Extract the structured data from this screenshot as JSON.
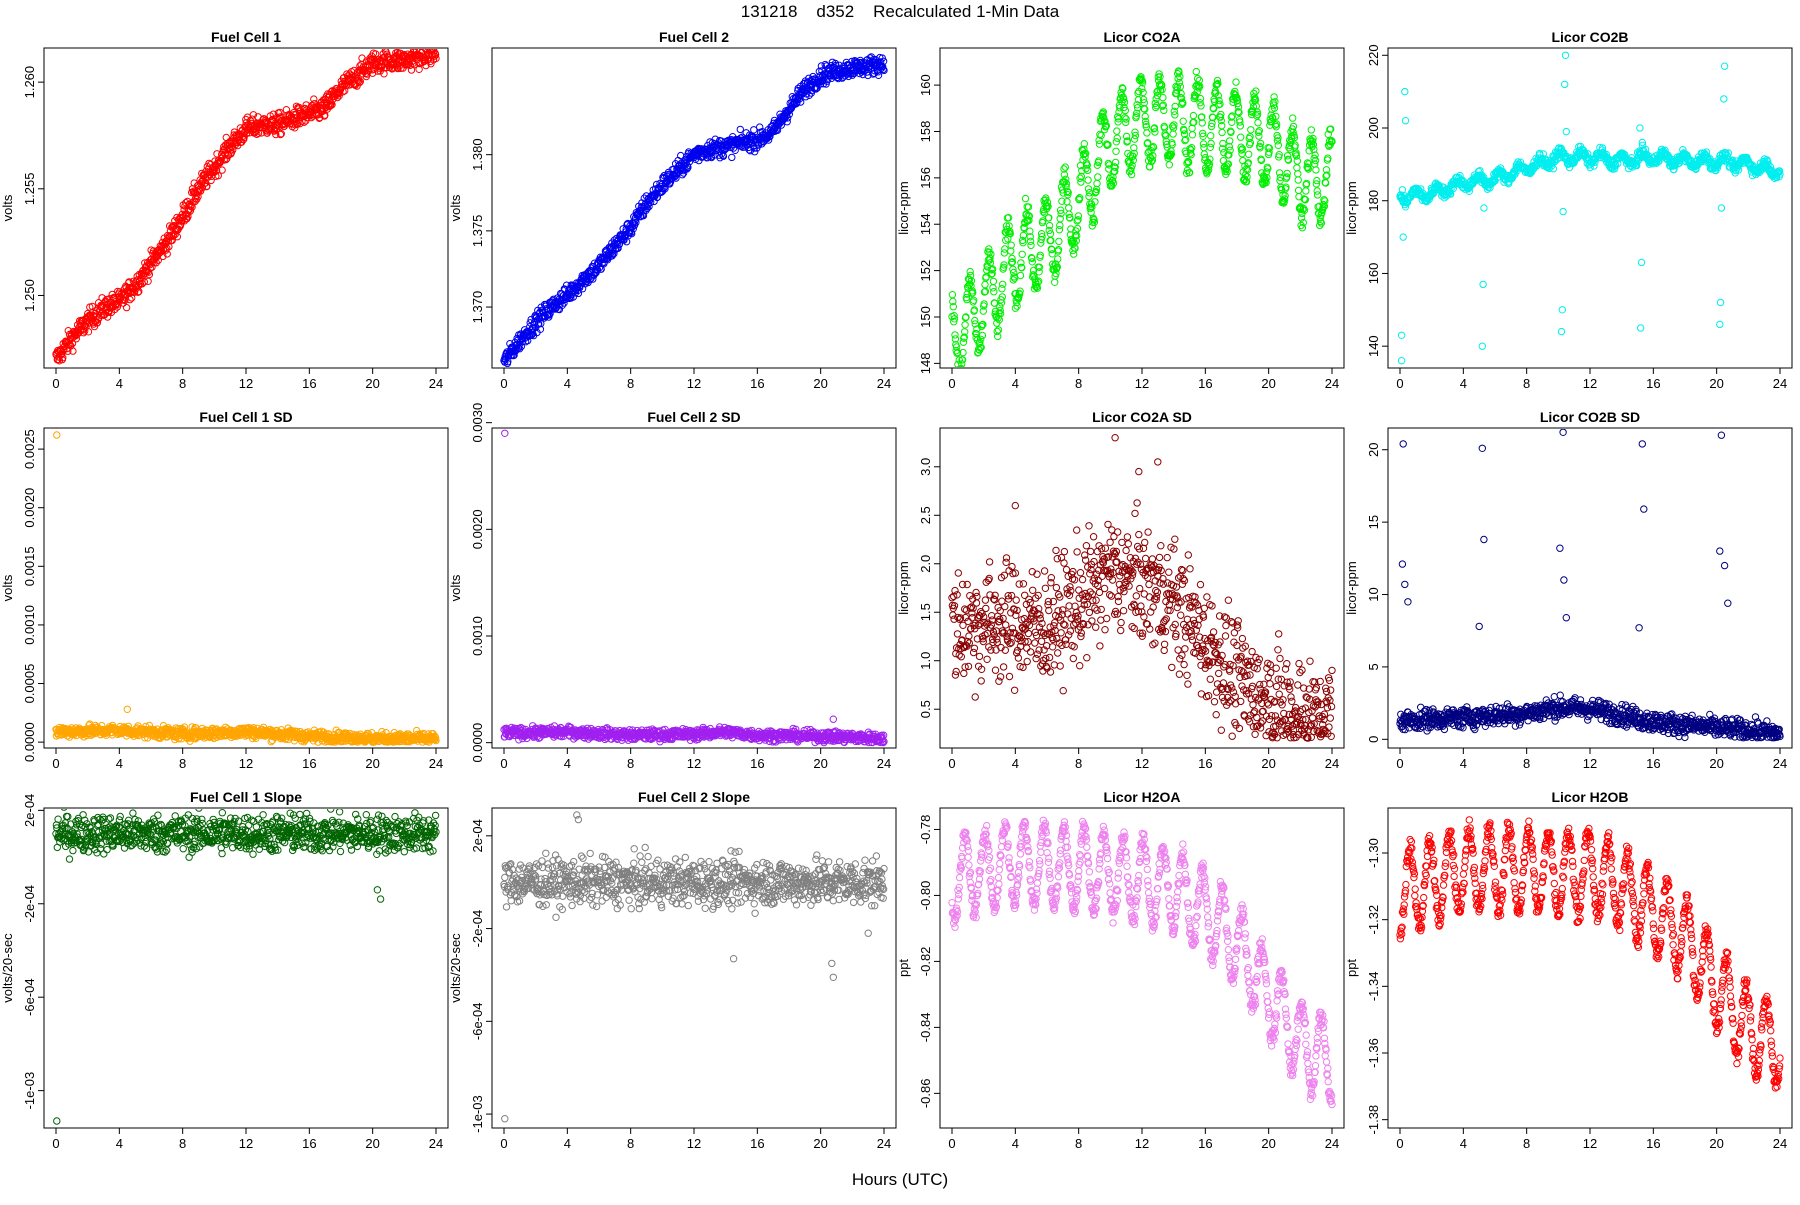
{
  "figure": {
    "title": "131218    d352    Recalculated 1-Min Data",
    "xlabel": "Hours (UTC)"
  },
  "chart_data": [
    {
      "type": "scatter",
      "title": "Fuel Cell 1",
      "ylabel": "volts",
      "color": "#ff0000",
      "xlim": [
        0,
        24
      ],
      "ylim": [
        1.2466,
        1.2616
      ],
      "xticks": [
        0,
        4,
        8,
        12,
        16,
        20,
        24
      ],
      "yticks": [
        1.25,
        1.255,
        1.26
      ],
      "ytick_labels": [
        "1.250",
        "1.255",
        "1.260"
      ],
      "trend": [
        [
          0,
          1.247
        ],
        [
          1,
          1.248
        ],
        [
          2,
          1.2488
        ],
        [
          3,
          1.2494
        ],
        [
          4,
          1.2497
        ],
        [
          5,
          1.2505
        ],
        [
          6,
          1.2515
        ],
        [
          7,
          1.2525
        ],
        [
          8,
          1.2537
        ],
        [
          9,
          1.255
        ],
        [
          10,
          1.256
        ],
        [
          11,
          1.257
        ],
        [
          12,
          1.2578
        ],
        [
          13,
          1.258
        ],
        [
          14,
          1.258
        ],
        [
          15,
          1.2583
        ],
        [
          16,
          1.2585
        ],
        [
          17,
          1.2588
        ],
        [
          18,
          1.2597
        ],
        [
          19,
          1.2603
        ],
        [
          20,
          1.2609
        ],
        [
          21,
          1.261
        ],
        [
          22,
          1.261
        ],
        [
          23,
          1.2612
        ],
        [
          24,
          1.2613
        ]
      ],
      "noise": 0.00025
    },
    {
      "type": "scatter",
      "title": "Fuel Cell 2",
      "ylabel": "volts",
      "color": "#0000ee",
      "xlim": [
        0,
        24
      ],
      "ylim": [
        1.366,
        1.387
      ],
      "xticks": [
        0,
        4,
        8,
        12,
        16,
        20,
        24
      ],
      "yticks": [
        1.37,
        1.375,
        1.38
      ],
      "ytick_labels": [
        "1.370",
        "1.375",
        "1.380"
      ],
      "trend": [
        [
          0,
          1.3664
        ],
        [
          1,
          1.3678
        ],
        [
          2,
          1.369
        ],
        [
          3,
          1.37
        ],
        [
          4,
          1.3708
        ],
        [
          5,
          1.3718
        ],
        [
          6,
          1.3727
        ],
        [
          7,
          1.374
        ],
        [
          8,
          1.3752
        ],
        [
          9,
          1.3768
        ],
        [
          10,
          1.378
        ],
        [
          11,
          1.379
        ],
        [
          12,
          1.38
        ],
        [
          13,
          1.3804
        ],
        [
          14,
          1.3805
        ],
        [
          15,
          1.3808
        ],
        [
          16,
          1.381
        ],
        [
          17,
          1.3815
        ],
        [
          18,
          1.383
        ],
        [
          19,
          1.3843
        ],
        [
          20,
          1.3852
        ],
        [
          21,
          1.3855
        ],
        [
          22,
          1.3857
        ],
        [
          23,
          1.3858
        ],
        [
          24,
          1.386
        ]
      ],
      "noise": 0.0003
    },
    {
      "type": "scatter",
      "title": "Licor CO2A",
      "ylabel": "licor-ppm",
      "color": "#00ee00",
      "xlim": [
        0,
        24
      ],
      "ylim": [
        147.8,
        161.6
      ],
      "xticks": [
        0,
        4,
        8,
        12,
        16,
        20,
        24
      ],
      "yticks": [
        148,
        150,
        152,
        154,
        156,
        158,
        160
      ],
      "ytick_labels": [
        "148",
        "150",
        "152",
        "154",
        "156",
        "158",
        "160"
      ],
      "trend": [
        [
          0,
          149.0
        ],
        [
          2,
          150.5
        ],
        [
          4,
          152.5
        ],
        [
          6,
          153.2
        ],
        [
          8,
          155.0
        ],
        [
          10,
          157.5
        ],
        [
          12,
          158.5
        ],
        [
          14,
          158.5
        ],
        [
          16,
          158.2
        ],
        [
          18,
          158.0
        ],
        [
          20,
          157.5
        ],
        [
          22,
          156.0
        ],
        [
          24,
          156.0
        ]
      ],
      "wave_amp": 1.8,
      "wave_period": 1.2,
      "noise": 0.25
    },
    {
      "type": "scatter",
      "title": "Licor CO2B",
      "ylabel": "licor-ppm",
      "color": "#00eeee",
      "xlim": [
        0,
        24
      ],
      "ylim": [
        134,
        222
      ],
      "xticks": [
        0,
        4,
        8,
        12,
        16,
        20,
        24
      ],
      "yticks": [
        140,
        160,
        180,
        200,
        220
      ],
      "ytick_labels": [
        "140",
        "160",
        "180",
        "200",
        "220"
      ],
      "trend": [
        [
          0,
          181
        ],
        [
          2,
          182
        ],
        [
          4,
          185
        ],
        [
          6,
          186
        ],
        [
          8,
          189
        ],
        [
          10,
          192
        ],
        [
          12,
          192
        ],
        [
          14,
          191
        ],
        [
          16,
          192
        ],
        [
          18,
          191
        ],
        [
          20,
          191
        ],
        [
          22,
          190
        ],
        [
          24,
          188
        ]
      ],
      "wave_amp": 1.5,
      "wave_period": 1.3,
      "noise": 0.7,
      "outliers": [
        [
          0.1,
          136
        ],
        [
          0.1,
          143
        ],
        [
          0.15,
          183
        ],
        [
          0.3,
          210
        ],
        [
          0.35,
          202
        ],
        [
          0.2,
          170
        ],
        [
          5.2,
          140
        ],
        [
          5.25,
          157
        ],
        [
          5.3,
          178
        ],
        [
          10.2,
          144
        ],
        [
          10.25,
          150
        ],
        [
          10.3,
          177
        ],
        [
          10.4,
          212
        ],
        [
          10.45,
          220
        ],
        [
          10.5,
          199
        ],
        [
          15.2,
          145
        ],
        [
          15.25,
          163
        ],
        [
          15.3,
          196
        ],
        [
          15.15,
          200
        ],
        [
          20.2,
          146
        ],
        [
          20.25,
          152
        ],
        [
          20.3,
          178
        ],
        [
          20.45,
          208
        ],
        [
          20.5,
          217
        ]
      ]
    },
    {
      "type": "scatter",
      "title": "Fuel Cell 1 SD",
      "ylabel": "volts",
      "color": "#ffa500",
      "xlim": [
        0,
        24
      ],
      "ylim": [
        -5e-05,
        0.00268
      ],
      "xticks": [
        0,
        4,
        8,
        12,
        16,
        20,
        24
      ],
      "yticks": [
        0.0,
        0.0005,
        0.001,
        0.0015,
        0.002,
        0.0025
      ],
      "ytick_labels": [
        "0.0000",
        "0.0005",
        "0.0010",
        "0.0015",
        "0.0020",
        "0.0025"
      ],
      "trend": [
        [
          0,
          9e-05
        ],
        [
          4,
          0.0001
        ],
        [
          8,
          7e-05
        ],
        [
          12,
          9e-05
        ],
        [
          16,
          5e-05
        ],
        [
          20,
          3e-05
        ],
        [
          24,
          3e-05
        ]
      ],
      "noise": 2.5e-05,
      "floor": 0.0,
      "outliers": [
        [
          0.05,
          0.00262
        ],
        [
          4.5,
          0.00028
        ]
      ]
    },
    {
      "type": "scatter",
      "title": "Fuel Cell 2 SD",
      "ylabel": "volts",
      "color": "#a020f0",
      "xlim": [
        0,
        24
      ],
      "ylim": [
        -5e-05,
        0.00295
      ],
      "xticks": [
        0,
        4,
        8,
        12,
        16,
        20,
        24
      ],
      "yticks": [
        0.0,
        0.001,
        0.002,
        0.003
      ],
      "ytick_labels": [
        "0.0000",
        "0.0010",
        "0.0020",
        "0.0030"
      ],
      "trend": [
        [
          0,
          9e-05
        ],
        [
          4,
          0.0001
        ],
        [
          8,
          7e-05
        ],
        [
          12,
          8e-05
        ],
        [
          14,
          0.0001
        ],
        [
          16,
          7e-05
        ],
        [
          20,
          6e-05
        ],
        [
          24,
          4e-05
        ]
      ],
      "noise": 2.5e-05,
      "floor": 0.0,
      "outliers": [
        [
          0.05,
          0.0029
        ],
        [
          20.8,
          0.00022
        ]
      ]
    },
    {
      "type": "scatter",
      "title": "Licor CO2A SD",
      "ylabel": "licor-ppm",
      "color": "#8b0000",
      "xlim": [
        0,
        24
      ],
      "ylim": [
        0.1,
        3.4
      ],
      "xticks": [
        0,
        4,
        8,
        12,
        16,
        20,
        24
      ],
      "yticks": [
        0.5,
        1.0,
        1.5,
        2.0,
        2.5,
        3.0
      ],
      "ytick_labels": [
        "0.5",
        "1.0",
        "1.5",
        "2.0",
        "2.5",
        "3.0"
      ],
      "trend": [
        [
          0,
          1.35
        ],
        [
          4,
          1.4
        ],
        [
          6,
          1.35
        ],
        [
          8,
          1.6
        ],
        [
          10,
          1.9
        ],
        [
          12,
          1.8
        ],
        [
          14,
          1.6
        ],
        [
          16,
          1.2
        ],
        [
          18,
          0.8
        ],
        [
          20,
          0.55
        ],
        [
          22,
          0.45
        ],
        [
          24,
          0.4
        ]
      ],
      "noise": 0.3,
      "floor": 0.2,
      "outliers": [
        [
          10.3,
          3.3
        ],
        [
          13.0,
          3.05
        ],
        [
          11.8,
          2.95
        ],
        [
          4.0,
          2.6
        ]
      ]
    },
    {
      "type": "scatter",
      "title": "Licor CO2B SD",
      "ylabel": "licor-ppm",
      "color": "#000080",
      "xlim": [
        0,
        24
      ],
      "ylim": [
        -0.6,
        21.5
      ],
      "xticks": [
        0,
        4,
        8,
        12,
        16,
        20,
        24
      ],
      "yticks": [
        0,
        5,
        10,
        15,
        20
      ],
      "ytick_labels": [
        "0",
        "5",
        "10",
        "15",
        "20"
      ],
      "trend": [
        [
          0,
          1.3
        ],
        [
          4,
          1.5
        ],
        [
          8,
          1.8
        ],
        [
          10,
          2.2
        ],
        [
          12,
          2.1
        ],
        [
          14,
          1.7
        ],
        [
          16,
          1.2
        ],
        [
          20,
          0.8
        ],
        [
          24,
          0.4
        ]
      ],
      "noise": 0.35,
      "floor": 0.1,
      "outliers": [
        [
          0.2,
          20.4
        ],
        [
          0.15,
          12.1
        ],
        [
          0.3,
          10.7
        ],
        [
          0.5,
          9.5
        ],
        [
          5.2,
          20.1
        ],
        [
          5.3,
          13.8
        ],
        [
          5.0,
          7.8
        ],
        [
          10.3,
          21.2
        ],
        [
          10.1,
          13.2
        ],
        [
          10.35,
          11.0
        ],
        [
          10.5,
          8.4
        ],
        [
          15.3,
          20.4
        ],
        [
          15.4,
          15.9
        ],
        [
          15.1,
          7.7
        ],
        [
          20.3,
          21.0
        ],
        [
          20.2,
          13.0
        ],
        [
          20.5,
          12.0
        ],
        [
          20.7,
          9.4
        ]
      ]
    },
    {
      "type": "scatter",
      "title": "Fuel Cell 1 Slope",
      "ylabel": "volts/20-sec",
      "color": "#006400",
      "xlim": [
        0,
        24
      ],
      "ylim": [
        -0.00116,
        0.00021
      ],
      "xticks": [
        0,
        4,
        8,
        12,
        16,
        20,
        24
      ],
      "yticks": [
        0.0002,
        -0.0002,
        -0.0006,
        -0.001
      ],
      "ytick_labels": [
        "2e-04",
        "-2e-04",
        "-6e-04",
        "-1e-03"
      ],
      "trend": [
        [
          0,
          0.0001
        ],
        [
          24,
          0.0001
        ]
      ],
      "noise": 4e-05,
      "outliers": [
        [
          0.05,
          -0.00113
        ],
        [
          20.5,
          -0.00018
        ],
        [
          20.3,
          -0.00014
        ],
        [
          10.5,
          0.00019
        ],
        [
          15.0,
          0.00018
        ]
      ]
    },
    {
      "type": "scatter",
      "title": "Fuel Cell 2 Slope",
      "ylabel": "volts/20-sec",
      "color": "#808080",
      "xlim": [
        0,
        24
      ],
      "ylim": [
        -0.00106,
        0.00032
      ],
      "xticks": [
        0,
        4,
        8,
        12,
        16,
        20,
        24
      ],
      "yticks": [
        0.0002,
        -0.0002,
        -0.0006,
        -0.001
      ],
      "ytick_labels": [
        "2e-04",
        "-2e-04",
        "-6e-04",
        "-1e-03"
      ],
      "trend": [
        [
          0,
          0.0
        ],
        [
          24,
          0.0
        ]
      ],
      "noise": 5e-05,
      "outliers": [
        [
          0.05,
          -0.00102
        ],
        [
          20.7,
          -0.00035
        ],
        [
          20.8,
          -0.00041
        ],
        [
          14.5,
          -0.00033
        ],
        [
          4.6,
          0.00029
        ],
        [
          4.7,
          0.00027
        ],
        [
          23.0,
          -0.00022
        ]
      ]
    },
    {
      "type": "scatter",
      "title": "Licor H2OA",
      "ylabel": "ppt",
      "color": "#ee82ee",
      "xlim": [
        0,
        24
      ],
      "ylim": [
        -0.8705,
        -0.7735
      ],
      "xticks": [
        0,
        4,
        8,
        12,
        16,
        20,
        24
      ],
      "yticks": [
        -0.86,
        -0.84,
        -0.82,
        -0.8,
        -0.78
      ],
      "ytick_labels": [
        "-0.86",
        "-0.84",
        "-0.82",
        "-0.80",
        "-0.78"
      ],
      "trend": [
        [
          0,
          -0.795
        ],
        [
          4,
          -0.79
        ],
        [
          8,
          -0.792
        ],
        [
          12,
          -0.795
        ],
        [
          14,
          -0.798
        ],
        [
          16,
          -0.805
        ],
        [
          18,
          -0.815
        ],
        [
          20,
          -0.83
        ],
        [
          22,
          -0.845
        ],
        [
          24,
          -0.85
        ]
      ],
      "wave_amp": 0.012,
      "wave_period": 1.25,
      "noise": 0.0015
    },
    {
      "type": "scatter",
      "title": "Licor H2OB",
      "ylabel": "ppt",
      "color": "#ff0000",
      "xlim": [
        0,
        24
      ],
      "ylim": [
        -1.3825,
        -1.2865
      ],
      "xticks": [
        0,
        4,
        8,
        12,
        16,
        20,
        24
      ],
      "yticks": [
        -1.38,
        -1.36,
        -1.34,
        -1.32,
        -1.3
      ],
      "ytick_labels": [
        "-1.38",
        "-1.36",
        "-1.34",
        "-1.32",
        "-1.30"
      ],
      "trend": [
        [
          0,
          -1.312
        ],
        [
          4,
          -1.305
        ],
        [
          8,
          -1.305
        ],
        [
          12,
          -1.306
        ],
        [
          14,
          -1.31
        ],
        [
          16,
          -1.318
        ],
        [
          18,
          -1.325
        ],
        [
          20,
          -1.34
        ],
        [
          22,
          -1.353
        ],
        [
          24,
          -1.358
        ]
      ],
      "wave_amp": 0.012,
      "wave_period": 1.25,
      "noise": 0.0015
    }
  ]
}
